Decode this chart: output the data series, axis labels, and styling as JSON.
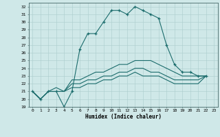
{
  "xlabel": "Humidex (Indice chaleur)",
  "ylabel": "",
  "xlim": [
    -0.5,
    23.5
  ],
  "ylim": [
    19,
    32.5
  ],
  "yticks": [
    19,
    20,
    21,
    22,
    23,
    24,
    25,
    26,
    27,
    28,
    29,
    30,
    31,
    32
  ],
  "xticks": [
    0,
    1,
    2,
    3,
    4,
    5,
    6,
    7,
    8,
    9,
    10,
    11,
    12,
    13,
    14,
    15,
    16,
    17,
    18,
    19,
    20,
    21,
    22,
    23
  ],
  "background_color": "#cfe8e8",
  "grid_color": "#aacccc",
  "line_color": "#1a6b6b",
  "series": [
    [
      21.0,
      20.0,
      21.0,
      21.0,
      19.0,
      21.0,
      26.5,
      28.5,
      28.5,
      30.0,
      31.5,
      31.5,
      31.0,
      32.0,
      31.5,
      31.0,
      30.5,
      27.0,
      24.5,
      23.5,
      23.5,
      23.0,
      23.0
    ],
    [
      21.0,
      20.0,
      21.0,
      21.5,
      21.0,
      22.5,
      22.5,
      23.0,
      23.5,
      23.5,
      24.0,
      24.5,
      24.5,
      25.0,
      25.0,
      25.0,
      24.5,
      24.0,
      23.5,
      23.0,
      23.0,
      23.0,
      23.0
    ],
    [
      21.0,
      20.0,
      21.0,
      21.0,
      21.0,
      22.0,
      22.0,
      22.5,
      22.5,
      23.0,
      23.0,
      23.5,
      23.5,
      24.0,
      24.0,
      23.5,
      23.5,
      23.0,
      22.5,
      22.5,
      22.5,
      22.5,
      23.0
    ],
    [
      21.0,
      20.0,
      21.0,
      21.0,
      21.0,
      21.5,
      21.5,
      22.0,
      22.0,
      22.5,
      22.5,
      23.0,
      23.0,
      23.5,
      23.0,
      23.0,
      23.0,
      22.5,
      22.0,
      22.0,
      22.0,
      22.0,
      23.0
    ]
  ]
}
